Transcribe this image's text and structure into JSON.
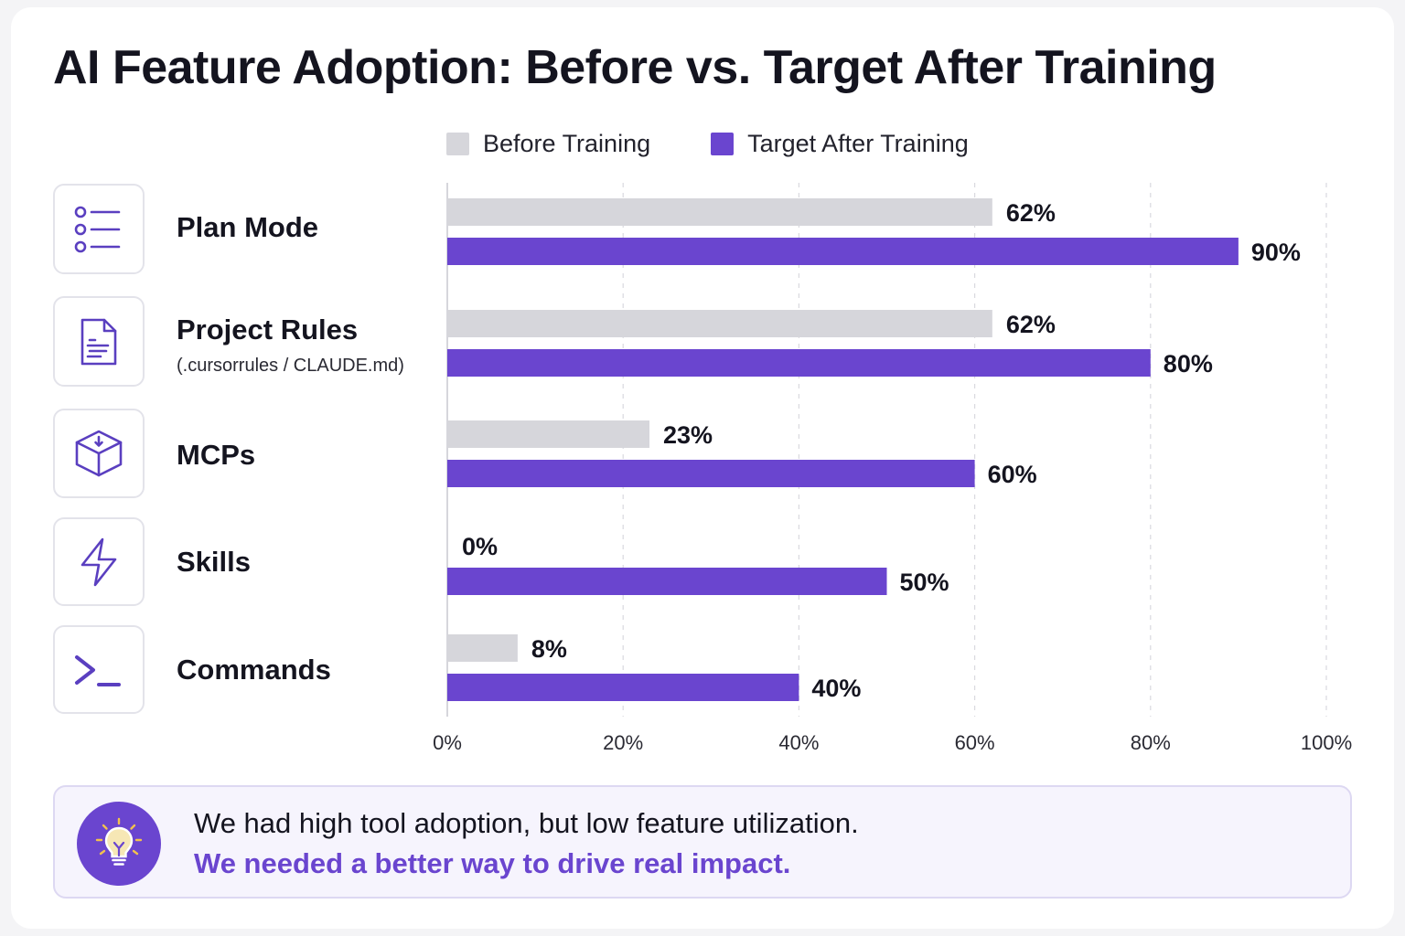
{
  "title": "AI Feature Adoption: Before vs. Target After Training",
  "legend": {
    "before_label": "Before Training",
    "after_label": "Target After Training"
  },
  "colors": {
    "before": "#d6d6db",
    "after": "#6a45cf",
    "icon": "#5a3fc0",
    "grid": "#d9d9df",
    "text": "#14141f"
  },
  "features": [
    {
      "name": "Plan Mode",
      "subtitle": "",
      "icon": "list-icon"
    },
    {
      "name": "Project Rules",
      "subtitle": "(.cursorrules / CLAUDE.md)",
      "icon": "document-icon"
    },
    {
      "name": "MCPs",
      "subtitle": "",
      "icon": "cube-icon"
    },
    {
      "name": "Skills",
      "subtitle": "",
      "icon": "lightning-icon"
    },
    {
      "name": "Commands",
      "subtitle": "",
      "icon": "terminal-icon"
    }
  ],
  "chart_data": {
    "type": "bar",
    "orientation": "horizontal",
    "categories": [
      "Plan Mode",
      "Project Rules",
      "MCPs",
      "Skills",
      "Commands"
    ],
    "series": [
      {
        "name": "Before Training",
        "values": [
          62,
          62,
          23,
          0,
          8
        ],
        "labels": [
          "62%",
          "62%",
          "23%",
          "0%",
          "8%"
        ]
      },
      {
        "name": "Target After Training",
        "values": [
          90,
          80,
          60,
          50,
          40
        ],
        "labels": [
          "90%",
          "80%",
          "60%",
          "50%",
          "40%"
        ]
      }
    ],
    "xlim": [
      0,
      100
    ],
    "x_ticks": [
      "0%",
      "20%",
      "40%",
      "60%",
      "80%",
      "100%"
    ],
    "x_tick_values": [
      0,
      20,
      40,
      60,
      80,
      100
    ],
    "grid": true,
    "legend": "top"
  },
  "callout": {
    "icon": "lightbulb-icon",
    "line1": "We had high tool adoption, but low feature utilization.",
    "line2": "We needed a better way to drive real impact."
  }
}
